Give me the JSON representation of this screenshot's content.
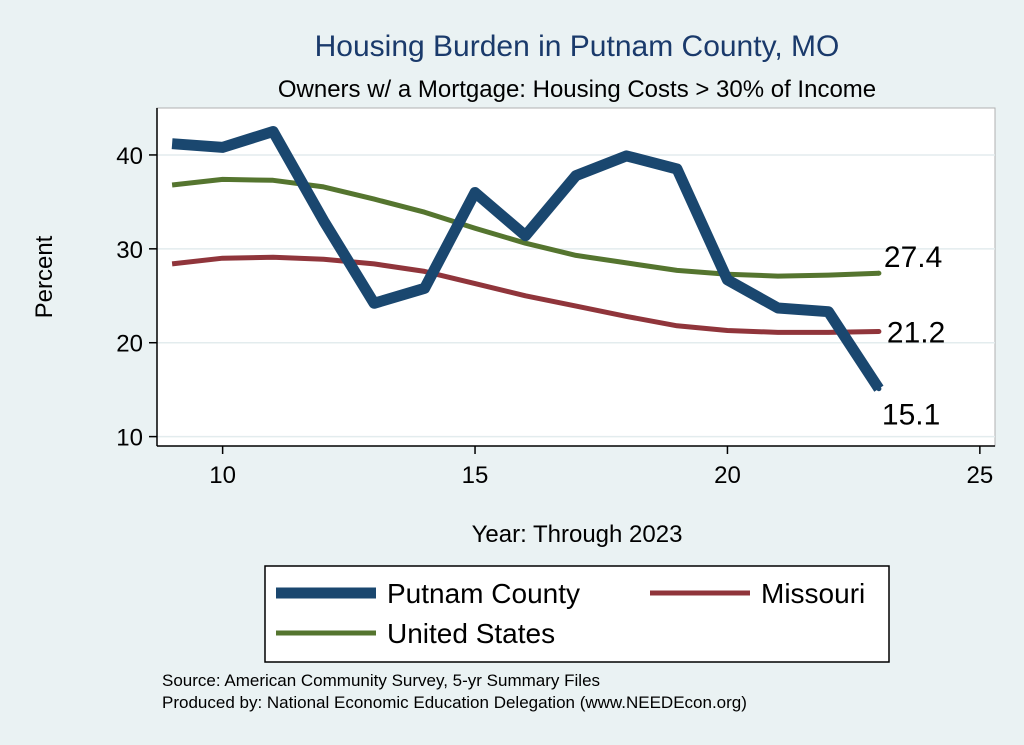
{
  "chart_data": {
    "type": "line",
    "title": "Housing Burden in Putnam County, MO",
    "subtitle": "Owners w/ a Mortgage: Housing Costs > 30% of Income",
    "xlabel": "Year: Through 2023",
    "ylabel": "Percent",
    "xlim": [
      8.7,
      25.3
    ],
    "ylim": [
      9,
      45
    ],
    "xticks": [
      10,
      15,
      20,
      25
    ],
    "yticks": [
      10,
      20,
      30,
      40
    ],
    "grid": true,
    "legend_position": "bottom",
    "series": [
      {
        "name": "Putnam County",
        "color": "#1a476f",
        "x": [
          9,
          10,
          11,
          12,
          13,
          14,
          15,
          16,
          17,
          18,
          19,
          20,
          21,
          22,
          23
        ],
        "values": [
          41.2,
          40.8,
          42.5,
          33.0,
          24.2,
          25.8,
          36.0,
          31.4,
          37.8,
          39.9,
          38.5,
          26.7,
          23.7,
          23.3,
          15.1
        ],
        "end_label": "15.1"
      },
      {
        "name": "Missouri",
        "color": "#90353b",
        "x": [
          9,
          10,
          11,
          12,
          13,
          14,
          15,
          16,
          17,
          18,
          19,
          20,
          21,
          22,
          23
        ],
        "values": [
          28.4,
          29.0,
          29.1,
          28.9,
          28.4,
          27.6,
          26.3,
          25.0,
          23.9,
          22.8,
          21.8,
          21.3,
          21.1,
          21.1,
          21.2
        ],
        "end_label": "21.2"
      },
      {
        "name": "United States",
        "color": "#55752f",
        "x": [
          9,
          10,
          11,
          12,
          13,
          14,
          15,
          16,
          17,
          18,
          19,
          20,
          21,
          22,
          23
        ],
        "values": [
          36.8,
          37.4,
          37.3,
          36.6,
          35.3,
          33.9,
          32.2,
          30.6,
          29.3,
          28.5,
          27.7,
          27.3,
          27.1,
          27.2,
          27.4
        ],
        "end_label": "27.4"
      }
    ],
    "notes": [
      "Source: American Community Survey, 5-yr Summary Files",
      "Produced by: National Economic Education Delegation (www.NEEDEcon.org)"
    ]
  }
}
